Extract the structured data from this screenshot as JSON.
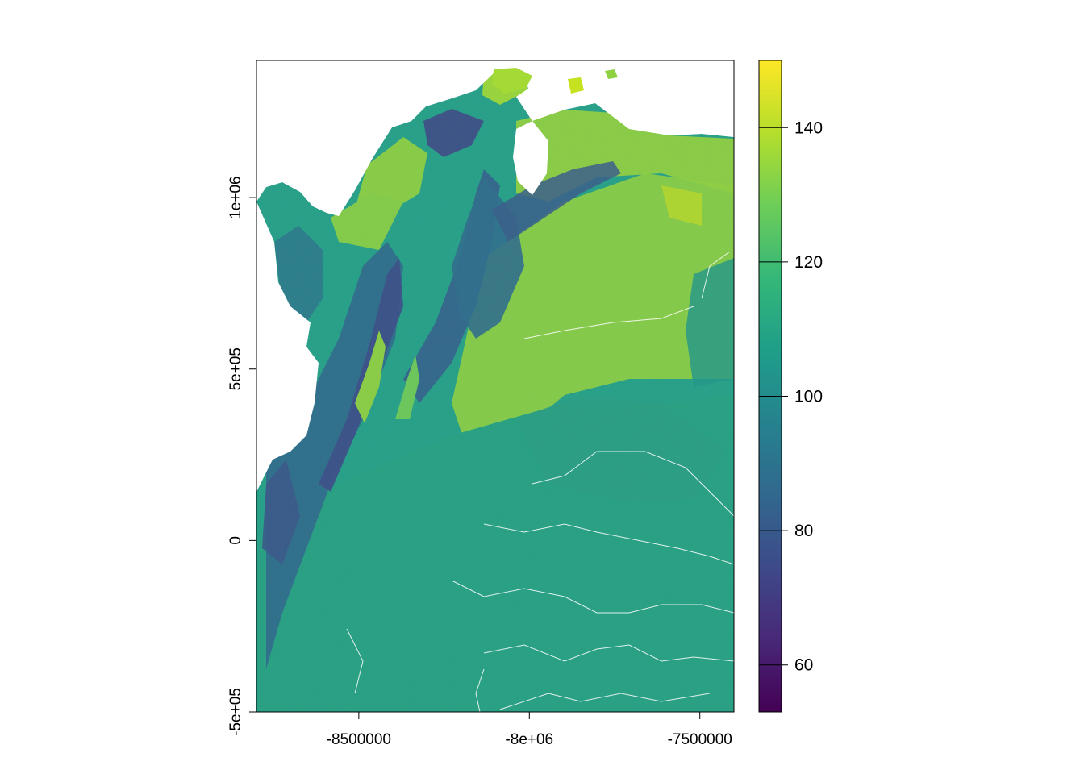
{
  "map": {
    "type": "raster",
    "x_ticks": [
      {
        "value": -8500000,
        "label": "-8500000"
      },
      {
        "value": -8000000,
        "label": "-8e+06"
      },
      {
        "value": -7500000,
        "label": "-7500000"
      }
    ],
    "y_ticks": [
      {
        "value": 1000000,
        "label": "1e+06"
      },
      {
        "value": 500000,
        "label": "5e+05"
      },
      {
        "value": 0,
        "label": "0"
      },
      {
        "value": -500000,
        "label": "-5e+05"
      }
    ],
    "xlim": [
      -8800000,
      -7400000
    ],
    "ylim": [
      -500000,
      1400000
    ],
    "colors": {
      "frame": "#000000",
      "background": "#ffffff",
      "water": "#ffffff"
    }
  },
  "legend": {
    "colormap": "viridis",
    "range": [
      53,
      150
    ],
    "ticks": [
      {
        "value": 60,
        "label": "60"
      },
      {
        "value": 80,
        "label": "80"
      },
      {
        "value": 100,
        "label": "100"
      },
      {
        "value": 120,
        "label": "120"
      },
      {
        "value": 140,
        "label": "140"
      }
    ],
    "stops": [
      "#440154",
      "#482878",
      "#3e4a89",
      "#31688e",
      "#26828e",
      "#1f9e89",
      "#35b779",
      "#6dcd59",
      "#b4de2c",
      "#fde725"
    ]
  }
}
